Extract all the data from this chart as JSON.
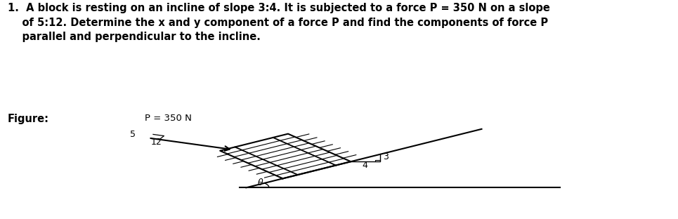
{
  "title_line1": "1.  A block is resting on an incline of slope 3:4. It is subjected to a force P = 350 N on a slope",
  "title_line2": "    of 5:12. Determine the x and y component of a force P and find the components of force P",
  "title_line3": "    parallel and perpendicular to the incline.",
  "figure_label": "Figure:",
  "p_label": "P = 350 N",
  "label_5": "5",
  "label_12": "12",
  "label_3": "3",
  "label_4": "4",
  "label_theta": "θ",
  "bg_color": "#ffffff",
  "line_color": "#000000",
  "text_color": "#000000",
  "title_fontsize": 10.5,
  "fig_label_fontsize": 10.5,
  "anno_fontsize": 9
}
